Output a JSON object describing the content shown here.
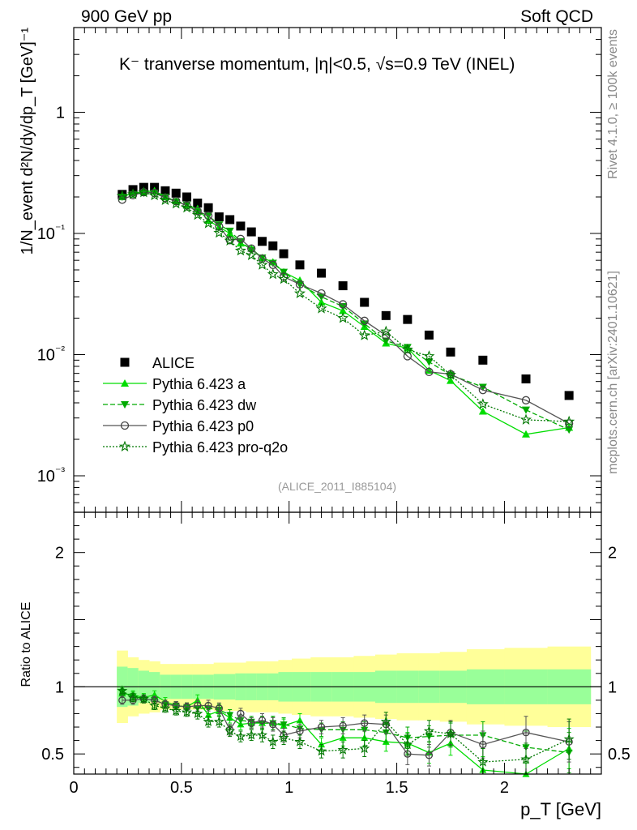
{
  "header": {
    "left": "900 GeV pp",
    "right": "Soft QCD"
  },
  "side_text": {
    "rivet": "Rivet 4.1.0, ≥ 100k events",
    "mcplots": "mcplots.cern.ch [arXiv:2401.10621]"
  },
  "chart_data": {
    "type": "scatter",
    "title": "K⁻ tranverse momentum, |η|<0.5, √s=0.9 TeV (INEL)",
    "analysis_id": "(ALICE_2011_I885104)",
    "xlabel": "p_T [GeV]",
    "ylabel": "1/N_event d²N/dy/dp_T [GeV]⁻¹",
    "ratio_ylabel": "Ratio to ALICE",
    "xlim": [
      0,
      2.45
    ],
    "ylim": [
      0.0005,
      5
    ],
    "ratio_ylim": [
      0.35,
      2.3
    ],
    "x_ticks": [
      "0",
      "0.5",
      "1",
      "1.5",
      "2"
    ],
    "y_ticks": [
      "1",
      "10⁻¹",
      "10⁻²",
      "10⁻³"
    ],
    "ratio_ticks": [
      "0.5",
      "1",
      "2"
    ],
    "x": [
      0.225,
      0.275,
      0.325,
      0.375,
      0.425,
      0.475,
      0.525,
      0.575,
      0.625,
      0.675,
      0.725,
      0.775,
      0.825,
      0.875,
      0.925,
      0.975,
      1.05,
      1.15,
      1.25,
      1.35,
      1.45,
      1.55,
      1.65,
      1.75,
      1.9,
      2.1,
      2.3
    ],
    "series": [
      {
        "name": "ALICE",
        "style": "data",
        "color": "#000000",
        "values": [
          0.21,
          0.23,
          0.24,
          0.24,
          0.225,
          0.215,
          0.2,
          0.178,
          0.163,
          0.137,
          0.13,
          0.115,
          0.103,
          0.086,
          0.079,
          0.068,
          0.055,
          0.047,
          0.037,
          0.027,
          0.021,
          0.0195,
          0.0145,
          0.0105,
          0.009,
          0.0063,
          0.0046
        ],
        "band_inner": [
          0.15,
          0.14,
          0.12,
          0.11,
          0.09,
          0.09,
          0.09,
          0.09,
          0.09,
          0.095,
          0.095,
          0.1,
          0.1,
          0.1,
          0.1,
          0.11,
          0.11,
          0.11,
          0.11,
          0.11,
          0.12,
          0.12,
          0.12,
          0.12,
          0.13,
          0.13,
          0.13
        ],
        "band_outer": [
          0.27,
          0.22,
          0.2,
          0.19,
          0.17,
          0.17,
          0.17,
          0.17,
          0.17,
          0.18,
          0.18,
          0.18,
          0.19,
          0.19,
          0.19,
          0.2,
          0.21,
          0.22,
          0.22,
          0.23,
          0.24,
          0.25,
          0.25,
          0.26,
          0.28,
          0.29,
          0.3
        ]
      },
      {
        "name": "Pythia 6.423 a",
        "style": "tri-up",
        "color": "#00dd00",
        "values": [
          0.2,
          0.216,
          0.22,
          0.225,
          0.2,
          0.185,
          0.17,
          0.16,
          0.128,
          0.113,
          0.1,
          0.083,
          0.075,
          0.063,
          0.058,
          0.048,
          0.041,
          0.027,
          0.023,
          0.017,
          0.0124,
          0.0113,
          0.0074,
          0.0061,
          0.0034,
          0.0022,
          0.0025
        ],
        "ratio": [
          0.95,
          0.94,
          0.92,
          0.94,
          0.89,
          0.86,
          0.85,
          0.9,
          0.79,
          0.82,
          0.77,
          0.72,
          0.73,
          0.73,
          0.73,
          0.71,
          0.75,
          0.57,
          0.62,
          0.62,
          0.59,
          0.58,
          0.51,
          0.58,
          0.38,
          0.35,
          0.54
        ],
        "ratio_err": [
          0.03,
          0.03,
          0.03,
          0.03,
          0.03,
          0.03,
          0.03,
          0.04,
          0.04,
          0.04,
          0.04,
          0.04,
          0.04,
          0.05,
          0.05,
          0.05,
          0.05,
          0.05,
          0.06,
          0.06,
          0.07,
          0.08,
          0.08,
          0.09,
          0.1,
          0.12,
          0.15
        ]
      },
      {
        "name": "Pythia 6.423 dw",
        "style": "tri-down",
        "color": "#00aa00",
        "values": [
          0.2,
          0.21,
          0.216,
          0.216,
          0.2,
          0.182,
          0.172,
          0.15,
          0.14,
          0.118,
          0.105,
          0.086,
          0.073,
          0.063,
          0.057,
          0.048,
          0.038,
          0.03,
          0.025,
          0.018,
          0.013,
          0.0115,
          0.0087,
          0.0068,
          0.0054,
          0.0035,
          0.0024
        ],
        "ratio": [
          0.96,
          0.93,
          0.91,
          0.9,
          0.87,
          0.86,
          0.85,
          0.84,
          0.84,
          0.83,
          0.79,
          0.75,
          0.74,
          0.73,
          0.73,
          0.72,
          0.69,
          0.68,
          0.68,
          0.68,
          0.66,
          0.62,
          0.63,
          0.64,
          0.64,
          0.55,
          0.51
        ],
        "ratio_err": [
          0.03,
          0.03,
          0.03,
          0.03,
          0.03,
          0.03,
          0.03,
          0.04,
          0.04,
          0.04,
          0.04,
          0.04,
          0.04,
          0.05,
          0.05,
          0.05,
          0.05,
          0.05,
          0.06,
          0.06,
          0.07,
          0.08,
          0.08,
          0.09,
          0.1,
          0.12,
          0.15
        ]
      },
      {
        "name": "Pythia 6.423 p0",
        "style": "circle-open",
        "color": "#444444",
        "values": [
          0.19,
          0.207,
          0.219,
          0.216,
          0.196,
          0.185,
          0.17,
          0.153,
          0.14,
          0.114,
          0.088,
          0.09,
          0.075,
          0.062,
          0.055,
          0.044,
          0.038,
          0.032,
          0.026,
          0.019,
          0.0144,
          0.0097,
          0.0072,
          0.0069,
          0.0051,
          0.0042,
          0.0027
        ],
        "ratio": [
          0.9,
          0.9,
          0.91,
          0.9,
          0.87,
          0.86,
          0.85,
          0.86,
          0.86,
          0.84,
          0.68,
          0.8,
          0.73,
          0.75,
          0.72,
          0.64,
          0.67,
          0.7,
          0.71,
          0.73,
          0.72,
          0.5,
          0.49,
          0.66,
          0.57,
          0.66,
          0.59
        ],
        "ratio_err": [
          0.03,
          0.03,
          0.03,
          0.03,
          0.03,
          0.03,
          0.03,
          0.04,
          0.04,
          0.04,
          0.04,
          0.04,
          0.04,
          0.05,
          0.05,
          0.05,
          0.05,
          0.05,
          0.06,
          0.06,
          0.07,
          0.08,
          0.08,
          0.09,
          0.1,
          0.12,
          0.15
        ]
      },
      {
        "name": "Pythia 6.423 pro-q2o",
        "style": "star-open",
        "color": "#007700",
        "values": [
          0.204,
          0.21,
          0.218,
          0.206,
          0.188,
          0.176,
          0.163,
          0.142,
          0.121,
          0.101,
          0.087,
          0.072,
          0.066,
          0.055,
          0.046,
          0.042,
          0.032,
          0.024,
          0.02,
          0.0144,
          0.0155,
          0.011,
          0.0097,
          0.0068,
          0.0039,
          0.0029,
          0.0028
        ],
        "ratio": [
          0.97,
          0.92,
          0.91,
          0.86,
          0.84,
          0.82,
          0.81,
          0.8,
          0.74,
          0.74,
          0.67,
          0.63,
          0.64,
          0.64,
          0.59,
          0.62,
          0.59,
          0.52,
          0.53,
          0.54,
          0.74,
          0.57,
          0.67,
          0.65,
          0.44,
          0.46,
          0.61
        ],
        "ratio_err": [
          0.03,
          0.03,
          0.03,
          0.03,
          0.03,
          0.03,
          0.03,
          0.04,
          0.04,
          0.04,
          0.04,
          0.04,
          0.04,
          0.05,
          0.05,
          0.05,
          0.05,
          0.05,
          0.06,
          0.06,
          0.07,
          0.08,
          0.08,
          0.09,
          0.1,
          0.12,
          0.15
        ]
      }
    ]
  }
}
